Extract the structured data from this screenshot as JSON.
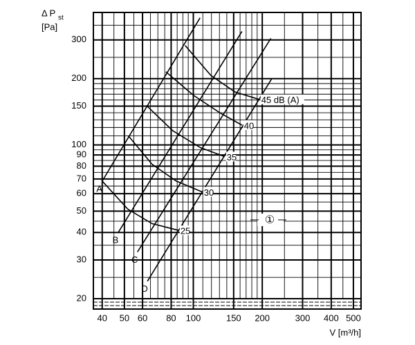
{
  "chart_data": {
    "type": "line",
    "y_label": "Δ P",
    "y_label_sub": "st",
    "y_unit": "[Pa]",
    "x_label": "V [m³/h]",
    "xlim": [
      36.6,
      540
    ],
    "ylim": [
      20,
      400
    ],
    "log_x": true,
    "log_y": true,
    "xticks": [
      40,
      50,
      60,
      80,
      100,
      150,
      200,
      300,
      400,
      500
    ],
    "yticks": [
      20,
      30,
      40,
      50,
      60,
      70,
      80,
      90,
      100,
      150,
      200,
      300
    ],
    "xgrid": [
      40,
      45,
      50,
      55,
      60,
      65,
      70,
      75,
      80,
      85,
      90,
      95,
      100,
      110,
      120,
      130,
      140,
      150,
      160,
      170,
      180,
      190,
      200,
      250,
      300,
      350,
      400,
      450,
      500
    ],
    "ygrid": [
      20,
      25,
      30,
      35,
      40,
      45,
      50,
      55,
      60,
      65,
      70,
      75,
      80,
      85,
      90,
      95,
      100,
      110,
      120,
      130,
      140,
      150,
      160,
      170,
      180,
      190,
      200,
      250,
      300,
      350,
      400
    ],
    "lines": [
      {
        "name": "A",
        "x": [
          40,
          107
        ],
        "values": [
          68.5,
          378
        ]
      },
      {
        "name": "B",
        "x": [
          47,
          163
        ],
        "values": [
          40,
          328
        ]
      },
      {
        "name": "C",
        "x": [
          57,
          218
        ],
        "values": [
          32.6,
          305
        ]
      },
      {
        "name": "D",
        "x": [
          63,
          220
        ],
        "values": [
          24,
          200
        ]
      }
    ],
    "curves": [
      {
        "name": "25",
        "x": [
          40,
          51.7,
          66,
          86
        ],
        "values": [
          68.5,
          51.1,
          43.9,
          40.9
        ]
      },
      {
        "name": "30",
        "x": [
          52,
          66,
          84.2,
          108.9
        ],
        "values": [
          110,
          81.7,
          68.5,
          61.2
        ]
      },
      {
        "name": "35",
        "x": [
          62.4,
          81.3,
          107.4,
          137
        ],
        "values": [
          151,
          116,
          97.2,
          88.5
        ]
      },
      {
        "name": "40",
        "x": [
          75.8,
          100.2,
          130.5,
          163
        ],
        "values": [
          215,
          168,
          140,
          123
        ]
      },
      {
        "name": "45 dB (A)",
        "x": [
          92.1,
          119.2,
          152,
          194
        ],
        "values": [
          283,
          207,
          174,
          161
        ]
      }
    ],
    "annotation": "①"
  }
}
